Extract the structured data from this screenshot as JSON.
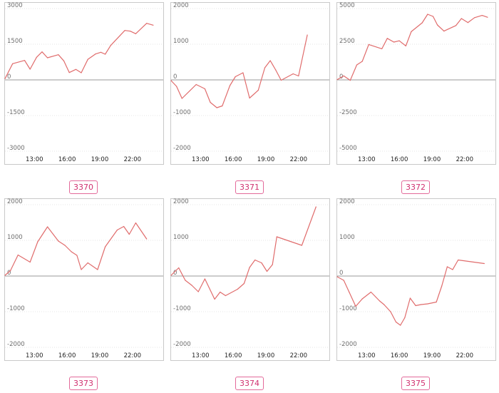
{
  "colors": {
    "line": "#e06c6c",
    "zero": "#9a9a9a",
    "grid": "#e4e4e4",
    "border": "#c9c9c9",
    "badge": "#d0306f"
  },
  "chart_data": [
    {
      "type": "line",
      "label": "3370",
      "ylim": [
        -3000,
        3000
      ],
      "yticks": [
        3000,
        1500,
        0,
        -1500,
        -3000
      ],
      "xticks": [
        {
          "x": 13,
          "label": "13:00"
        },
        {
          "x": 16,
          "label": "16:00"
        },
        {
          "x": 19,
          "label": "19:00"
        },
        {
          "x": 22,
          "label": "22:00"
        }
      ],
      "xlim": [
        10.3,
        24.3
      ],
      "x": [
        10.3,
        11.0,
        12.1,
        12.6,
        13.2,
        13.7,
        14.2,
        15.2,
        15.7,
        16.2,
        16.8,
        17.3,
        17.9,
        18.6,
        19.1,
        19.5,
        20.0,
        21.3,
        21.8,
        22.3,
        23.3,
        23.9
      ],
      "y": [
        50,
        680,
        820,
        450,
        950,
        1180,
        930,
        1060,
        800,
        310,
        440,
        300,
        860,
        1090,
        1160,
        1080,
        1450,
        2080,
        2050,
        1940,
        2380,
        2300
      ]
    },
    {
      "type": "line",
      "label": "3371",
      "ylim": [
        -2000,
        2000
      ],
      "yticks": [
        2000,
        1000,
        0,
        -1000,
        -2000
      ],
      "xticks": [
        {
          "x": 13,
          "label": "13:00"
        },
        {
          "x": 16,
          "label": "16:00"
        },
        {
          "x": 19,
          "label": "19:00"
        },
        {
          "x": 22,
          "label": "22:00"
        }
      ],
      "xlim": [
        10.3,
        24.3
      ],
      "x": [
        10.3,
        10.8,
        11.3,
        12.6,
        13.4,
        13.9,
        14.5,
        15.0,
        15.7,
        16.2,
        16.9,
        17.5,
        18.3,
        18.9,
        19.4,
        19.9,
        20.4,
        21.5,
        22.0,
        22.8
      ],
      "y": [
        -20,
        -180,
        -520,
        -130,
        -250,
        -630,
        -780,
        -730,
        -160,
        90,
        200,
        -510,
        -290,
        340,
        540,
        280,
        -10,
        170,
        110,
        1260
      ]
    },
    {
      "type": "line",
      "label": "3372",
      "ylim": [
        -5000,
        5000
      ],
      "yticks": [
        5000,
        2500,
        0,
        -2500,
        -5000
      ],
      "xticks": [
        {
          "x": 13,
          "label": "13:00"
        },
        {
          "x": 16,
          "label": "16:00"
        },
        {
          "x": 19,
          "label": "19:00"
        },
        {
          "x": 22,
          "label": "22:00"
        }
      ],
      "xlim": [
        10.3,
        24.3
      ],
      "x": [
        10.3,
        10.9,
        11.5,
        12.1,
        12.6,
        13.2,
        14.4,
        14.9,
        15.5,
        16.0,
        16.6,
        17.1,
        18.1,
        18.6,
        19.1,
        19.5,
        20.1,
        21.2,
        21.7,
        22.3,
        22.9,
        23.6,
        24.1
      ],
      "y": [
        20,
        280,
        -30,
        1050,
        1300,
        2480,
        2180,
        2910,
        2650,
        2740,
        2380,
        3380,
        4000,
        4600,
        4450,
        3850,
        3420,
        3810,
        4300,
        4020,
        4360,
        4520,
        4390
      ]
    },
    {
      "type": "line",
      "label": "3373",
      "ylim": [
        -2000,
        2000
      ],
      "yticks": [
        2000,
        1000,
        0,
        -1000,
        -2000
      ],
      "xticks": [
        {
          "x": 13,
          "label": "13:00"
        },
        {
          "x": 16,
          "label": "16:00"
        },
        {
          "x": 19,
          "label": "19:00"
        },
        {
          "x": 22,
          "label": "22:00"
        }
      ],
      "xlim": [
        10.3,
        24.3
      ],
      "x": [
        10.3,
        10.8,
        11.5,
        12.6,
        13.3,
        14.2,
        15.2,
        15.8,
        16.4,
        16.9,
        17.3,
        17.9,
        18.8,
        19.5,
        20.6,
        21.2,
        21.7,
        22.3,
        23.3
      ],
      "y": [
        20,
        150,
        590,
        390,
        960,
        1380,
        980,
        860,
        680,
        580,
        180,
        370,
        180,
        820,
        1290,
        1390,
        1170,
        1490,
        1040
      ]
    },
    {
      "type": "line",
      "label": "3374",
      "ylim": [
        -2000,
        2000
      ],
      "yticks": [
        2000,
        1000,
        0,
        -1000,
        -2000
      ],
      "xticks": [
        {
          "x": 13,
          "label": "13:00"
        },
        {
          "x": 16,
          "label": "16:00"
        },
        {
          "x": 19,
          "label": "19:00"
        },
        {
          "x": 22,
          "label": "22:00"
        }
      ],
      "xlim": [
        10.3,
        24.3
      ],
      "x": [
        10.3,
        11.0,
        11.6,
        12.2,
        12.8,
        13.4,
        14.3,
        14.8,
        15.3,
        16.4,
        17.0,
        17.5,
        18.0,
        18.6,
        19.1,
        19.6,
        20.0,
        22.3,
        23.6
      ],
      "y": [
        20,
        230,
        -120,
        -260,
        -440,
        -80,
        -650,
        -450,
        -550,
        -370,
        -210,
        240,
        450,
        370,
        130,
        320,
        1100,
        860,
        1940
      ]
    },
    {
      "type": "line",
      "label": "3375",
      "ylim": [
        -2000,
        2000
      ],
      "yticks": [
        2000,
        1000,
        0,
        -1000,
        -2000
      ],
      "xticks": [
        {
          "x": 13,
          "label": "13:00"
        },
        {
          "x": 16,
          "label": "16:00"
        },
        {
          "x": 19,
          "label": "19:00"
        },
        {
          "x": 22,
          "label": "22:00"
        }
      ],
      "xlim": [
        10.3,
        24.3
      ],
      "x": [
        10.3,
        10.9,
        11.4,
        12.0,
        12.6,
        13.4,
        14.2,
        14.6,
        15.2,
        15.7,
        16.1,
        16.5,
        17.0,
        17.5,
        18.0,
        18.6,
        19.4,
        19.9,
        20.4,
        20.9,
        21.4,
        23.8
      ],
      "y": [
        -20,
        -120,
        -450,
        -850,
        -640,
        -450,
        -700,
        -800,
        -1000,
        -1290,
        -1380,
        -1170,
        -620,
        -830,
        -800,
        -780,
        -730,
        -280,
        260,
        180,
        450,
        350
      ]
    }
  ]
}
